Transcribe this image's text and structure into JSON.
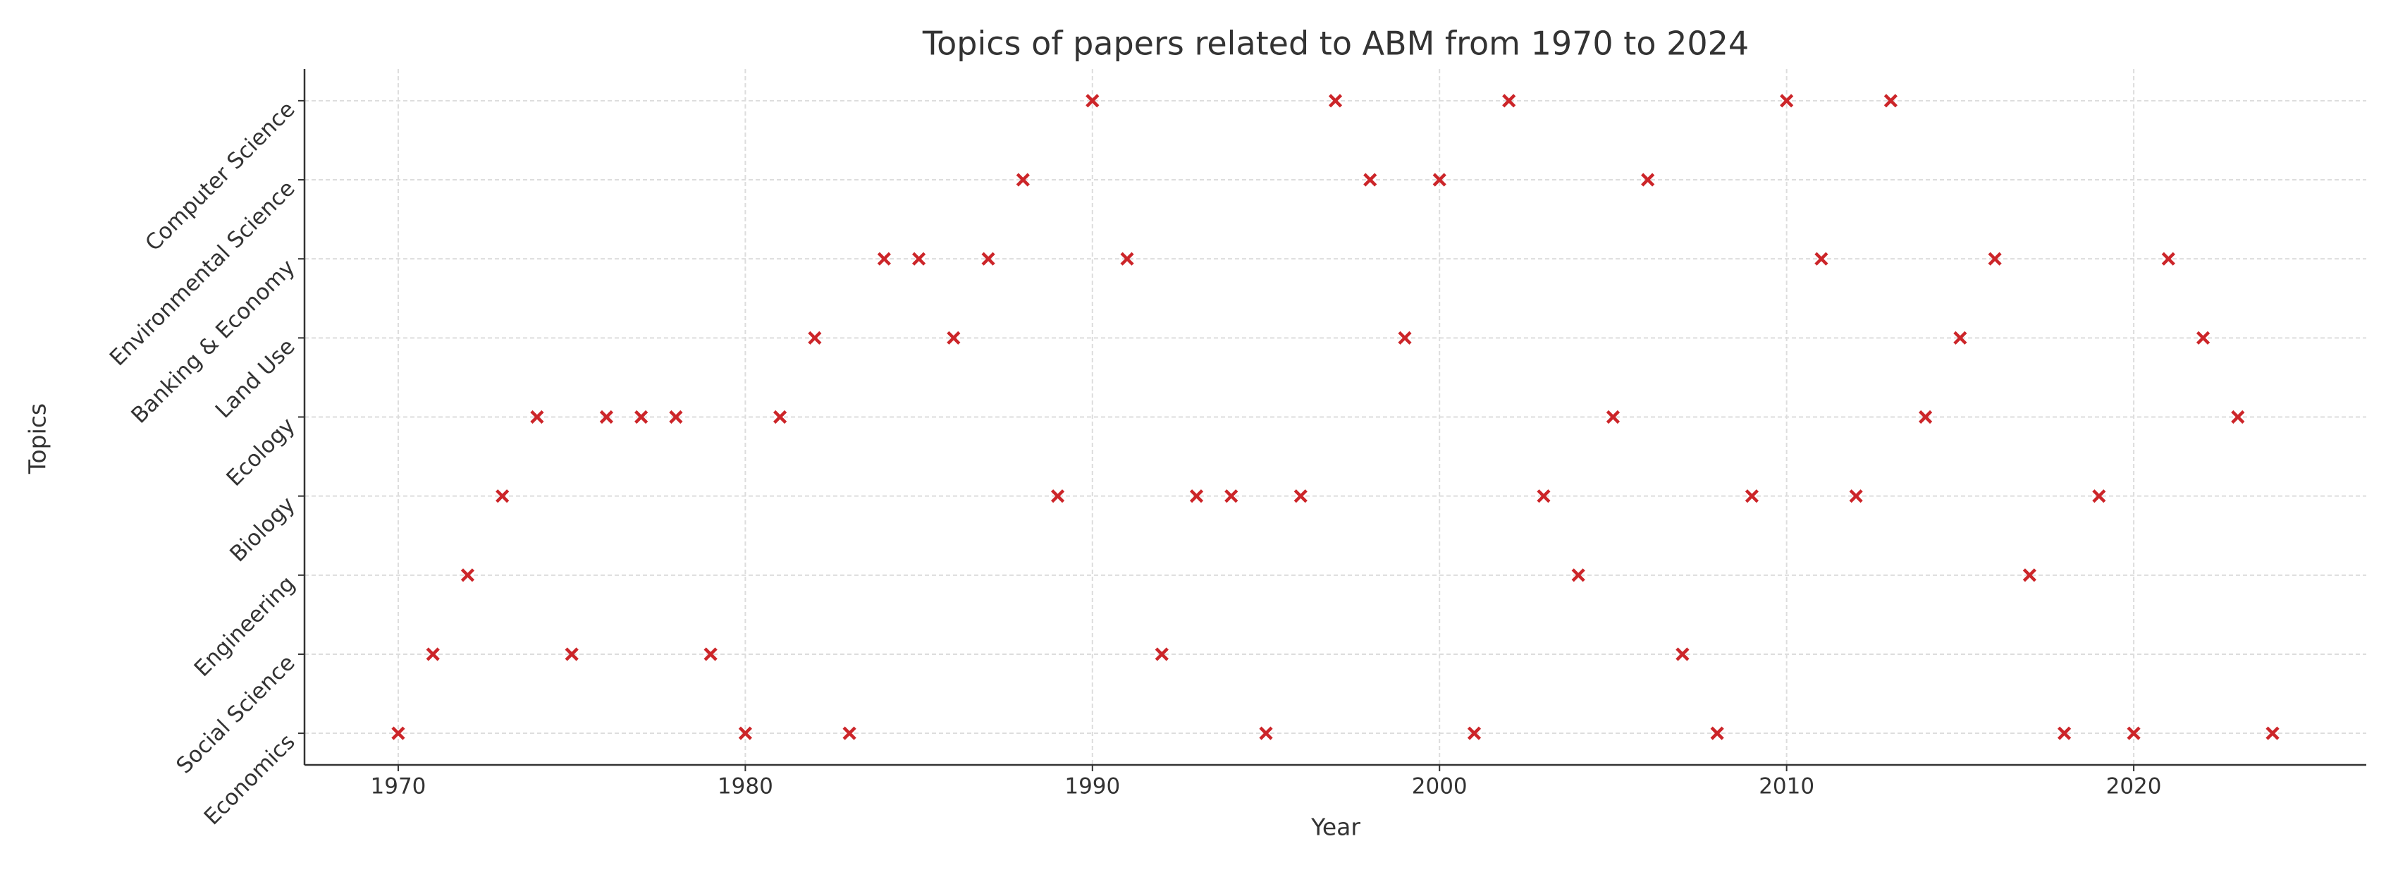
{
  "chart_data": {
    "type": "scatter",
    "title": "Topics of papers related to ABM from 1970 to 2024",
    "x_label": "Year",
    "y_label": "Topics",
    "y_categories": [
      "Economics",
      "Social Science",
      "Engineering",
      "Biology",
      "Ecology",
      "Land Use",
      "Banking & Economy",
      "Environmental Science",
      "Computer Science"
    ],
    "x": [
      1970,
      1971,
      1972,
      1973,
      1974,
      1975,
      1976,
      1977,
      1978,
      1979,
      1980,
      1981,
      1982,
      1983,
      1984,
      1985,
      1986,
      1987,
      1988,
      1989,
      1990,
      1991,
      1992,
      1993,
      1994,
      1995,
      1996,
      1997,
      1998,
      1999,
      2000,
      2001,
      2002,
      2003,
      2004,
      2005,
      2006,
      2007,
      2008,
      2009,
      2010,
      2011,
      2012,
      2013,
      2014,
      2015,
      2016,
      2017,
      2018,
      2019,
      2020,
      2021,
      2022,
      2023,
      2024
    ],
    "values": [
      "Economics",
      "Social Science",
      "Engineering",
      "Biology",
      "Ecology",
      "Social Science",
      "Ecology",
      "Ecology",
      "Ecology",
      "Social Science",
      "Economics",
      "Ecology",
      "Land Use",
      "Economics",
      "Banking & Economy",
      "Banking & Economy",
      "Land Use",
      "Banking & Economy",
      "Environmental Science",
      "Biology",
      "Computer Science",
      "Banking & Economy",
      "Social Science",
      "Biology",
      "Biology",
      "Economics",
      "Biology",
      "Computer Science",
      "Environmental Science",
      "Land Use",
      "Environmental Science",
      "Economics",
      "Computer Science",
      "Biology",
      "Engineering",
      "Ecology",
      "Environmental Science",
      "Social Science",
      "Economics",
      "Biology",
      "Computer Science",
      "Banking & Economy",
      "Biology",
      "Computer Science",
      "Ecology",
      "Land Use",
      "Banking & Economy",
      "Engineering",
      "Economics",
      "Biology",
      "Economics",
      "Banking & Economy",
      "Land Use",
      "Ecology",
      "Economics"
    ],
    "color": "#cc2529",
    "marker": "x",
    "xlim": [
      1967.3,
      2026.7
    ],
    "xticks": [
      1970,
      1980,
      1990,
      2000,
      2010,
      2020
    ],
    "grid": true
  }
}
